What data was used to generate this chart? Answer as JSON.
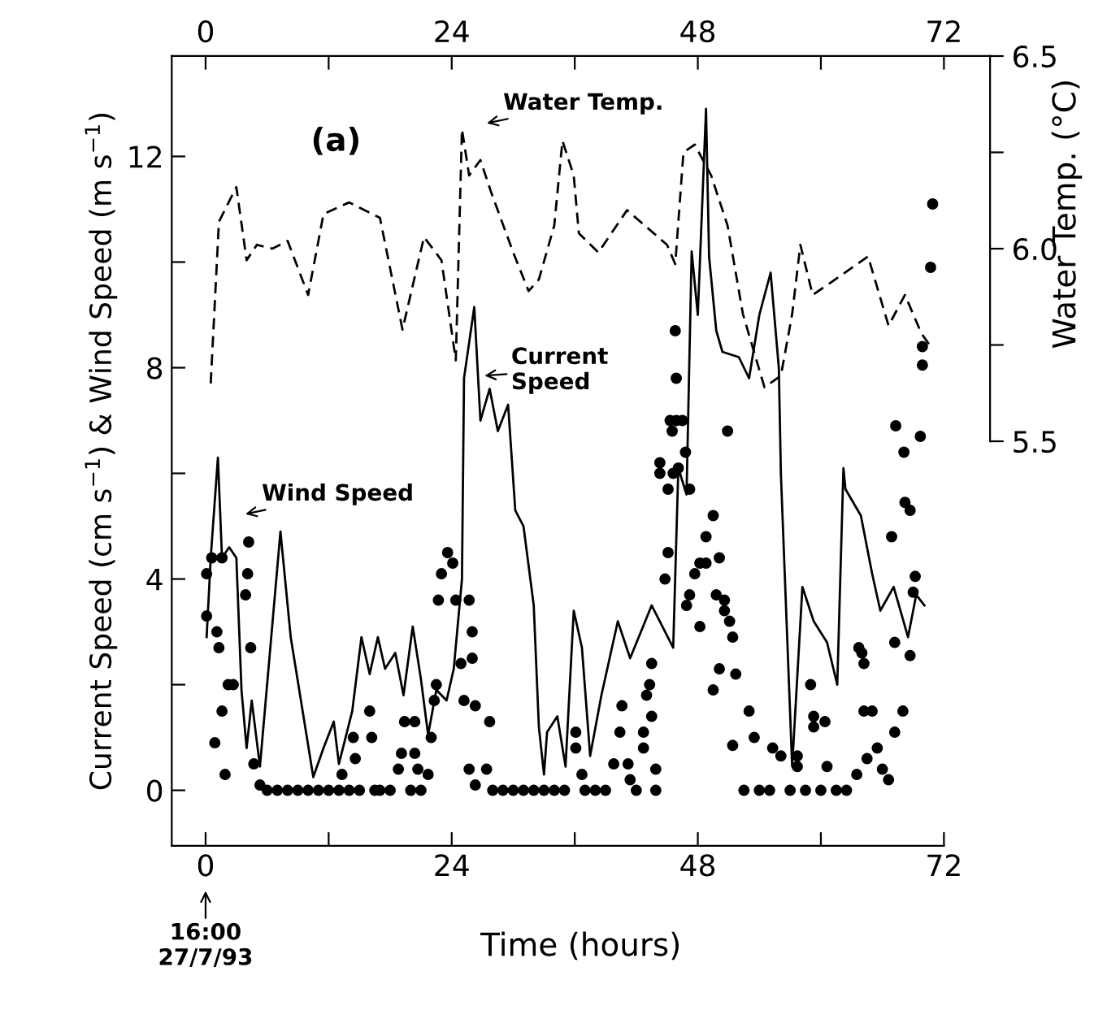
{
  "chart_data": {
    "type": "line",
    "xlabel": "Time (hours)",
    "ylabel": "Current Speed (cm s$^{−1}$) & Wind Speed (m s$^{−1}$)",
    "y2label": "Water Temp. (°C)",
    "xlim": [
      -3.3,
      76.5
    ],
    "xticks": [
      0,
      {
        "value": 12,
        "label": null
      },
      24,
      {
        "value": 36,
        "label": null
      },
      48,
      {
        "value": 60,
        "label": null
      },
      72
    ],
    "x2lim": [
      -3.3,
      76.5
    ],
    "x2ticks": [
      0,
      {
        "value": 12,
        "label": null
      },
      24,
      {
        "value": 36,
        "label": null
      },
      48,
      {
        "value": 60,
        "label": null
      },
      72
    ],
    "ylim": [
      -1.05,
      13.9
    ],
    "yticks": [
      0,
      {
        "value": 2,
        "label": null
      },
      4,
      {
        "value": 6,
        "label": null
      },
      8,
      {
        "value": 10,
        "label": null
      },
      12
    ],
    "y2lim": [
      4.45,
      6.5
    ],
    "y2ticks": [
      5.5,
      {
        "value": 5.75,
        "label": null
      },
      {
        "value": 6.0,
        "label": "6.0"
      },
      {
        "value": 6.25,
        "label": null
      },
      6.5
    ],
    "grid": false,
    "legend": false,
    "series": [
      {
        "axis": "y2",
        "color": "#000000",
        "line_style": "dashed",
        "marker": "none",
        "x": [
          0.5,
          1.3,
          3,
          4,
          5,
          6.5,
          8,
          10,
          11.5,
          14,
          17,
          19.2,
          21.3,
          23,
          24.4,
          25,
          25.7,
          26.8,
          27.8,
          30,
          31.5,
          32.5,
          34,
          34.8,
          35.9,
          36.4,
          38.3,
          41.1,
          45,
          45.8,
          46.6,
          47.7,
          49.3,
          50.9,
          52.4,
          54.5,
          56.1,
          57.2,
          58,
          59.2,
          61.4,
          64.6,
          66.6,
          68.2,
          69.8,
          70.6
        ],
        "values": [
          5.65,
          6.07,
          6.16,
          5.97,
          6.01,
          6.0,
          6.02,
          5.88,
          6.09,
          6.12,
          6.08,
          5.79,
          6.03,
          5.97,
          5.71,
          6.31,
          6.19,
          6.23,
          6.15,
          5.99,
          5.89,
          5.92,
          6.06,
          6.28,
          6.19,
          6.04,
          5.99,
          6.1,
          6.01,
          5.96,
          6.25,
          6.27,
          6.19,
          6.06,
          5.83,
          5.64,
          5.67,
          5.83,
          6.01,
          5.88,
          5.92,
          5.98,
          5.8,
          5.88,
          5.78,
          5.75
        ]
      },
      {
        "axis": "y",
        "color": "#000000",
        "line_style": "solid",
        "marker": "none",
        "x": [
          0.1,
          0.5,
          1.2,
          1.6,
          2.3,
          3,
          3.5,
          4,
          4.5,
          5.3,
          7.3,
          8.3,
          10.5,
          11.5,
          12.5,
          13,
          14.3,
          15.2,
          16,
          16.8,
          17.5,
          18.5,
          19.3,
          20.2,
          21,
          21.7,
          22.5,
          23.5,
          24.2,
          25,
          25.2,
          26.2,
          26.8,
          27.7,
          28.5,
          29.5,
          30.2,
          31,
          32,
          32.5,
          33,
          33.3,
          34.3,
          35.1,
          35.9,
          36.7,
          37.5,
          38.6,
          40.2,
          41.4,
          43.5,
          45.6,
          46.1,
          46.9,
          47.4,
          48,
          48.8,
          49.1,
          49.8,
          50.4,
          52,
          53,
          54,
          55.1,
          55.9,
          56.1,
          57.2,
          58.2,
          59.3,
          60.6,
          61.6,
          62.2,
          62.4,
          63.9,
          65,
          65.8,
          67.1,
          68.5,
          69.3,
          70.1
        ],
        "values": [
          2.9,
          4.4,
          6.3,
          4.4,
          4.6,
          4.4,
          1.9,
          0.8,
          1.7,
          0.45,
          4.9,
          2.9,
          0.25,
          0.8,
          1.3,
          0.5,
          1.5,
          2.9,
          2.2,
          2.9,
          2.3,
          2.6,
          1.8,
          3.1,
          2.1,
          1.05,
          1.9,
          1.7,
          2.3,
          4.0,
          7.8,
          9.15,
          7.0,
          7.6,
          6.8,
          7.3,
          5.3,
          5.0,
          3.5,
          1.2,
          0.3,
          1.1,
          1.4,
          0.45,
          3.4,
          2.7,
          0.65,
          1.8,
          3.2,
          2.5,
          3.5,
          2.7,
          6.1,
          5.6,
          10.2,
          9.0,
          12.9,
          10.1,
          8.7,
          8.3,
          8.2,
          7.8,
          9.0,
          9.8,
          8.0,
          6.0,
          0.45,
          3.85,
          3.2,
          2.8,
          2.0,
          6.1,
          5.7,
          5.2,
          4.1,
          3.4,
          3.85,
          2.9,
          3.7,
          3.5
        ]
      },
      {
        "type": "scatter",
        "axis": "y",
        "color": "#000000",
        "marker": "circle",
        "x": [
          0.1,
          0.1,
          0.6,
          0.9,
          1.1,
          1.3,
          1.6,
          1.6,
          1.9,
          2.2,
          2.7,
          3.9,
          4.1,
          4.2,
          4.4,
          4.7,
          5.3,
          6,
          7,
          8,
          9,
          10,
          11,
          12,
          13,
          13.3,
          14,
          14.4,
          14.6,
          15,
          16,
          16.2,
          16.5,
          17,
          18,
          18.8,
          19.1,
          19.4,
          20,
          20.4,
          20.4,
          20.7,
          21,
          21.7,
          22,
          22.3,
          22.5,
          22.7,
          23,
          23.6,
          24.1,
          24.4,
          24.9,
          25.2,
          25.7,
          25.7,
          26,
          26,
          26.3,
          26.3,
          27.4,
          27.7,
          28,
          29,
          30,
          31,
          32,
          33,
          34,
          35,
          36.1,
          36.1,
          36.7,
          37,
          38,
          39,
          39.8,
          40.4,
          40.6,
          41.2,
          41.4,
          42,
          42.7,
          42.7,
          43.0,
          43.3,
          43.5,
          43.5,
          43.9,
          43.9,
          44.3,
          44.3,
          44.8,
          45.1,
          45.1,
          45.3,
          45.5,
          45.6,
          45.8,
          45.9,
          45.9,
          46.1,
          46.5,
          46.8,
          46.9,
          47.2,
          47.2,
          47.7,
          48.2,
          48.2,
          48.8,
          48.8,
          49.5,
          49.5,
          49.8,
          50.1,
          50.1,
          50.6,
          50.6,
          50.9,
          51.1,
          51.4,
          51.4,
          51.7,
          52.5,
          53.0,
          53.5,
          54,
          55,
          55.3,
          56.1,
          57,
          57.7,
          57.7,
          58.5,
          59.0,
          59.3,
          59.3,
          60,
          60.4,
          60.6,
          61.5,
          62.5,
          63.5,
          63.7,
          64,
          64.2,
          64.2,
          64.5,
          65,
          65.5,
          66,
          66.6,
          66.9,
          67.2,
          67.2,
          67.3,
          68,
          68.1,
          68.2,
          68.7,
          68.7,
          69,
          69.2,
          69.7,
          69.9,
          69.9,
          70.7,
          70.9
        ],
        "values": [
          4.1,
          3.3,
          4.4,
          0.9,
          3.0,
          2.7,
          4.4,
          1.5,
          0.3,
          2.0,
          2.0,
          3.7,
          4.1,
          4.7,
          2.7,
          0.5,
          0.1,
          0,
          0,
          0,
          0,
          0,
          0,
          0,
          0,
          0.3,
          0,
          1.0,
          0.6,
          0,
          1.5,
          1.0,
          0,
          0,
          0,
          0.4,
          0.7,
          1.3,
          0,
          1.3,
          0.7,
          0.4,
          0,
          0.3,
          1.0,
          1.7,
          2.0,
          3.6,
          4.1,
          4.5,
          4.3,
          3.6,
          2.4,
          1.7,
          3.6,
          0.4,
          3.0,
          2.5,
          1.6,
          0.1,
          0.4,
          1.3,
          0,
          0,
          0,
          0,
          0,
          0,
          0,
          0,
          0.8,
          1.1,
          0.3,
          0,
          0,
          0,
          0.5,
          1.1,
          1.6,
          0.5,
          0.2,
          0,
          1.1,
          0.8,
          1.8,
          2.0,
          2.4,
          1.4,
          0.4,
          0.0,
          6.2,
          6.0,
          4.0,
          4.5,
          5.7,
          7.0,
          6.8,
          6.0,
          8.7,
          7.8,
          7.0,
          6.1,
          7.0,
          6.4,
          3.5,
          3.7,
          5.7,
          4.1,
          4.3,
          3.1,
          4.8,
          4.3,
          5.2,
          1.9,
          3.7,
          4.4,
          2.3,
          3.6,
          3.4,
          6.8,
          3.2,
          2.9,
          0.85,
          2.2,
          0,
          1.5,
          1.0,
          0,
          0,
          0.8,
          0.65,
          0,
          0.65,
          0.45,
          0,
          2.0,
          1.4,
          1.2,
          0,
          1.3,
          0.45,
          0,
          0,
          0.3,
          2.7,
          2.6,
          2.4,
          1.5,
          0.6,
          1.5,
          0.8,
          0.4,
          0.2,
          4.8,
          1.1,
          2.8,
          6.9,
          1.5,
          6.4,
          5.45,
          5.3,
          2.55,
          3.75,
          4.05,
          6.7,
          8.4,
          8.05,
          9.9,
          11.1
        ]
      }
    ],
    "annotations": [
      "(a)",
      "16:00\n27/7/93",
      "Water Temp.",
      "Wind Speed",
      {
        "text": "Current\nSpeed",
        "x": 27.2,
        "y": 7.85
      }
    ]
  }
}
